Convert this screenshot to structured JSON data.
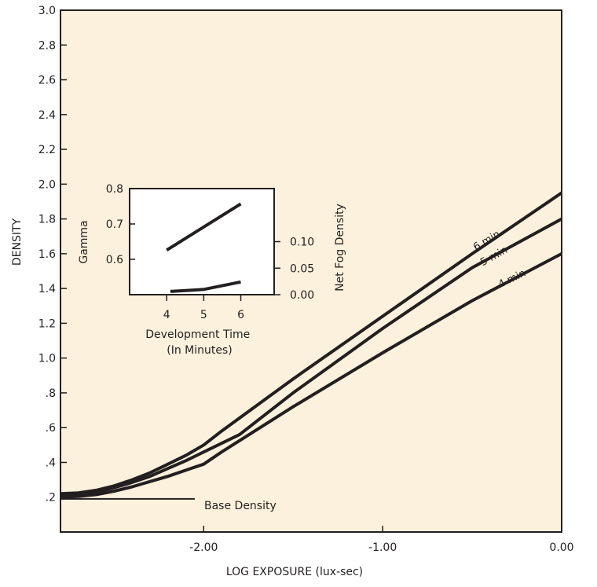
{
  "chart_data": [
    {
      "type": "line",
      "title": "",
      "xlabel": "LOG EXPOSURE (lux-sec)",
      "ylabel": "DENSITY",
      "xlim": [
        -2.8,
        0.0
      ],
      "ylim": [
        0.0,
        3.0
      ],
      "x_ticks": [
        -2.0,
        -1.0,
        0.0
      ],
      "x_tick_labels": [
        "-2.00",
        "-1.00",
        "0.00"
      ],
      "y_ticks": [
        0.2,
        0.4,
        0.6,
        0.8,
        1.0,
        1.2,
        1.4,
        1.6,
        1.8,
        2.0,
        2.2,
        2.4,
        2.6,
        2.8,
        3.0
      ],
      "y_tick_labels": [
        ".2",
        ".4",
        ".6",
        ".8",
        "1.0",
        "1.2",
        "1.4",
        "1.6",
        "1.8",
        "2.0",
        "2.2",
        "2.4",
        "2.6",
        "2.8",
        "3.0"
      ],
      "grid": false,
      "background": "#fcf1dc",
      "line_color": "#231f20",
      "series": [
        {
          "name": "6 min",
          "x": [
            -2.8,
            -2.7,
            -2.6,
            -2.5,
            -2.4,
            -2.3,
            -2.2,
            -2.1,
            -2.0,
            -1.9,
            -1.5,
            -1.0,
            -0.5,
            0.0
          ],
          "y": [
            0.22,
            0.225,
            0.24,
            0.265,
            0.3,
            0.34,
            0.39,
            0.44,
            0.5,
            0.58,
            0.88,
            1.24,
            1.6,
            1.95
          ]
        },
        {
          "name": "5 min",
          "x": [
            -2.8,
            -2.7,
            -2.6,
            -2.5,
            -2.4,
            -2.3,
            -2.2,
            -2.1,
            -2.0,
            -1.8,
            -1.5,
            -1.0,
            -0.5,
            0.0
          ],
          "y": [
            0.21,
            0.215,
            0.23,
            0.255,
            0.285,
            0.32,
            0.365,
            0.41,
            0.46,
            0.56,
            0.8,
            1.17,
            1.52,
            1.8
          ]
        },
        {
          "name": "4 min",
          "x": [
            -2.8,
            -2.7,
            -2.6,
            -2.5,
            -2.4,
            -2.3,
            -2.2,
            -2.1,
            -2.0,
            -1.9,
            -1.5,
            -1.0,
            -0.5,
            0.0
          ],
          "y": [
            0.2,
            0.205,
            0.215,
            0.235,
            0.26,
            0.29,
            0.32,
            0.355,
            0.39,
            0.46,
            0.72,
            1.03,
            1.33,
            1.6
          ]
        },
        {
          "name": "Base Density",
          "x": [
            -2.8,
            -2.05
          ],
          "y": [
            0.19,
            0.19
          ]
        }
      ],
      "annotations": [
        {
          "text": "Base Density",
          "x": -2.0,
          "y": 0.2
        }
      ]
    },
    {
      "type": "line",
      "title": "",
      "xlabel": "Development Time\n(In Minutes)",
      "ylabel": "Gamma",
      "y2label": "Net Fog Density",
      "xlim": [
        3.0,
        6.9
      ],
      "ylim": [
        0.5,
        0.8
      ],
      "y2lim": [
        0.0,
        0.2
      ],
      "x_ticks": [
        4,
        5,
        6
      ],
      "x_tick_labels": [
        "4",
        "5",
        "6"
      ],
      "y_ticks": [
        0.6,
        0.7,
        0.8
      ],
      "y_tick_labels": [
        "0.6",
        "0.7",
        "0.8"
      ],
      "y2_ticks": [
        0.0,
        0.05,
        0.1
      ],
      "y2_tick_labels": [
        "0.00",
        "0.05",
        "0.10"
      ],
      "grid": false,
      "series": [
        {
          "name": "Gamma",
          "axis": "left",
          "x": [
            4,
            6
          ],
          "y": [
            0.626,
            0.757
          ]
        },
        {
          "name": "Net Fog Density",
          "axis": "right",
          "x": [
            4.1,
            5.0,
            6.0
          ],
          "y": [
            0.006,
            0.01,
            0.024
          ]
        }
      ]
    }
  ]
}
